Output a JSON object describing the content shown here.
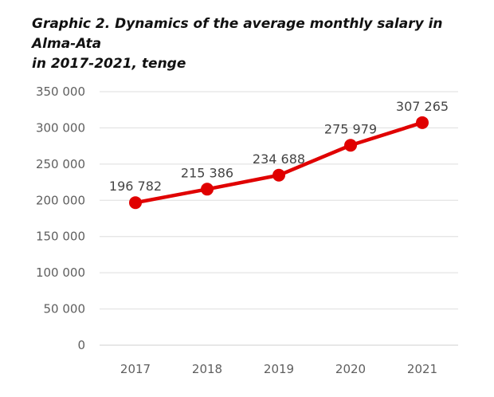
{
  "title_lines": [
    "Graphic 2. Dynamics of the average monthly salary in Alma-Ata",
    "in 2017-2021, tenge"
  ],
  "chart_data": {
    "type": "line",
    "title": "Graphic 2. Dynamics of the average monthly salary in Alma-Ata in 2017-2021, tenge",
    "categories": [
      "2017",
      "2018",
      "2019",
      "2020",
      "2021"
    ],
    "series": [
      {
        "values": [
          196782,
          215386,
          234688,
          275979,
          307265
        ],
        "labels": [
          "196 782",
          "215 386",
          "234 688",
          "275 979",
          "307 265"
        ],
        "color": "#e00000"
      }
    ],
    "ylim": [
      0,
      350000
    ],
    "yticks": [
      0,
      50000,
      100000,
      150000,
      200000,
      250000,
      300000,
      350000
    ],
    "ytick_labels": [
      "0",
      "50 000",
      "100 000",
      "150 000",
      "200 000",
      "250 000",
      "300 000",
      "350 000"
    ],
    "grid": true,
    "xlabel": "",
    "ylabel": ""
  }
}
